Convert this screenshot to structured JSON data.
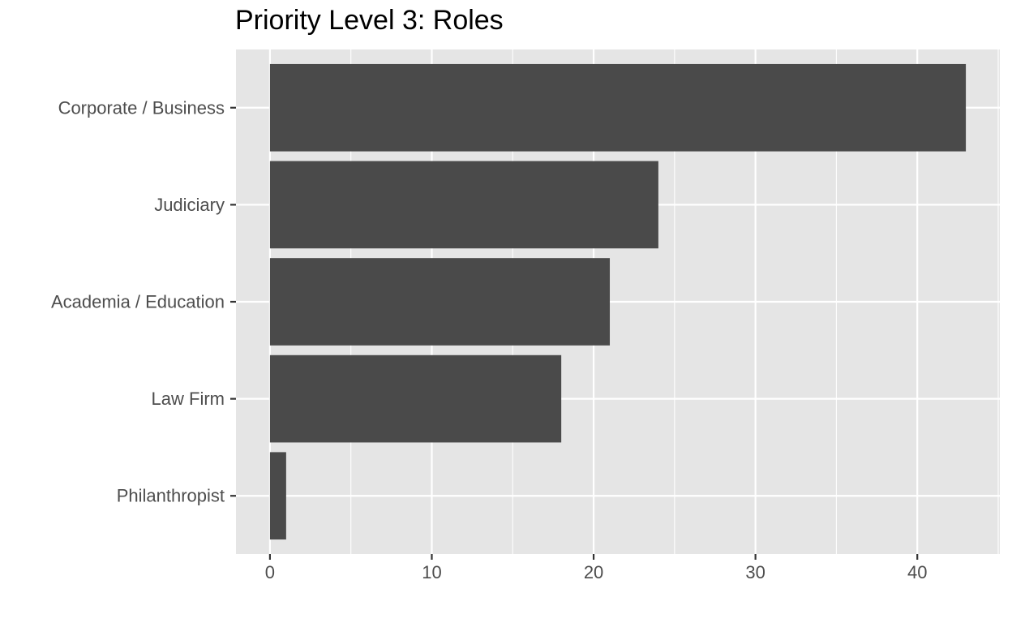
{
  "chart_data": {
    "type": "bar",
    "orientation": "horizontal",
    "title": "Priority Level 3: Roles",
    "xlabel": "",
    "ylabel": "",
    "categories": [
      "Corporate / Business",
      "Judiciary",
      "Academia / Education",
      "Law Firm",
      "Philanthropist"
    ],
    "values": [
      43,
      24,
      21,
      18,
      1
    ],
    "xlim": [
      -2.1,
      45.1
    ],
    "x_ticks": [
      0,
      10,
      20,
      30,
      40
    ],
    "grid": true,
    "legend": "none",
    "colors": {
      "bar": "#4a4a4a",
      "panel_background": "#e5e5e5",
      "grid": "#ffffff",
      "tick_text": "#4d4d4d",
      "tick_mark": "#333333"
    }
  }
}
